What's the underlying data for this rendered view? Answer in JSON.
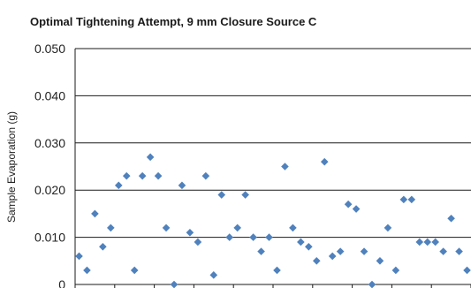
{
  "chart_data": {
    "type": "scatter",
    "title": "Optimal Tightening Attempt, 9 mm Closure  Source C",
    "xlabel": "",
    "ylabel": "Sample Evaporation (g)",
    "ylim": [
      0,
      0.05
    ],
    "y_ticks": [
      "0",
      "0.010",
      "0.020",
      "0.030",
      "0.040",
      "0.050"
    ],
    "grid": true,
    "marker_color": "#4F81BD",
    "x": [
      1,
      2,
      3,
      4,
      5,
      6,
      7,
      8,
      9,
      10,
      11,
      12,
      13,
      14,
      15,
      16,
      17,
      18,
      19,
      20,
      21,
      22,
      23,
      24,
      25,
      26,
      27,
      28,
      29,
      30,
      31,
      32,
      33,
      34,
      35,
      36,
      37,
      38,
      39,
      40,
      41,
      42,
      43,
      44,
      45,
      46,
      47,
      48,
      49,
      50
    ],
    "y": [
      0.006,
      0.003,
      0.015,
      0.008,
      0.012,
      0.021,
      0.023,
      0.003,
      0.023,
      0.027,
      0.023,
      0.012,
      0.0,
      0.021,
      0.011,
      0.009,
      0.023,
      0.002,
      0.019,
      0.01,
      0.012,
      0.019,
      0.01,
      0.007,
      0.01,
      0.003,
      0.025,
      0.012,
      0.009,
      0.008,
      0.005,
      0.026,
      0.006,
      0.007,
      0.017,
      0.016,
      0.007,
      0.0,
      0.005,
      0.012,
      0.003,
      0.018,
      0.018,
      0.009,
      0.009,
      0.009,
      0.007,
      0.014,
      0.007,
      0.003
    ]
  }
}
